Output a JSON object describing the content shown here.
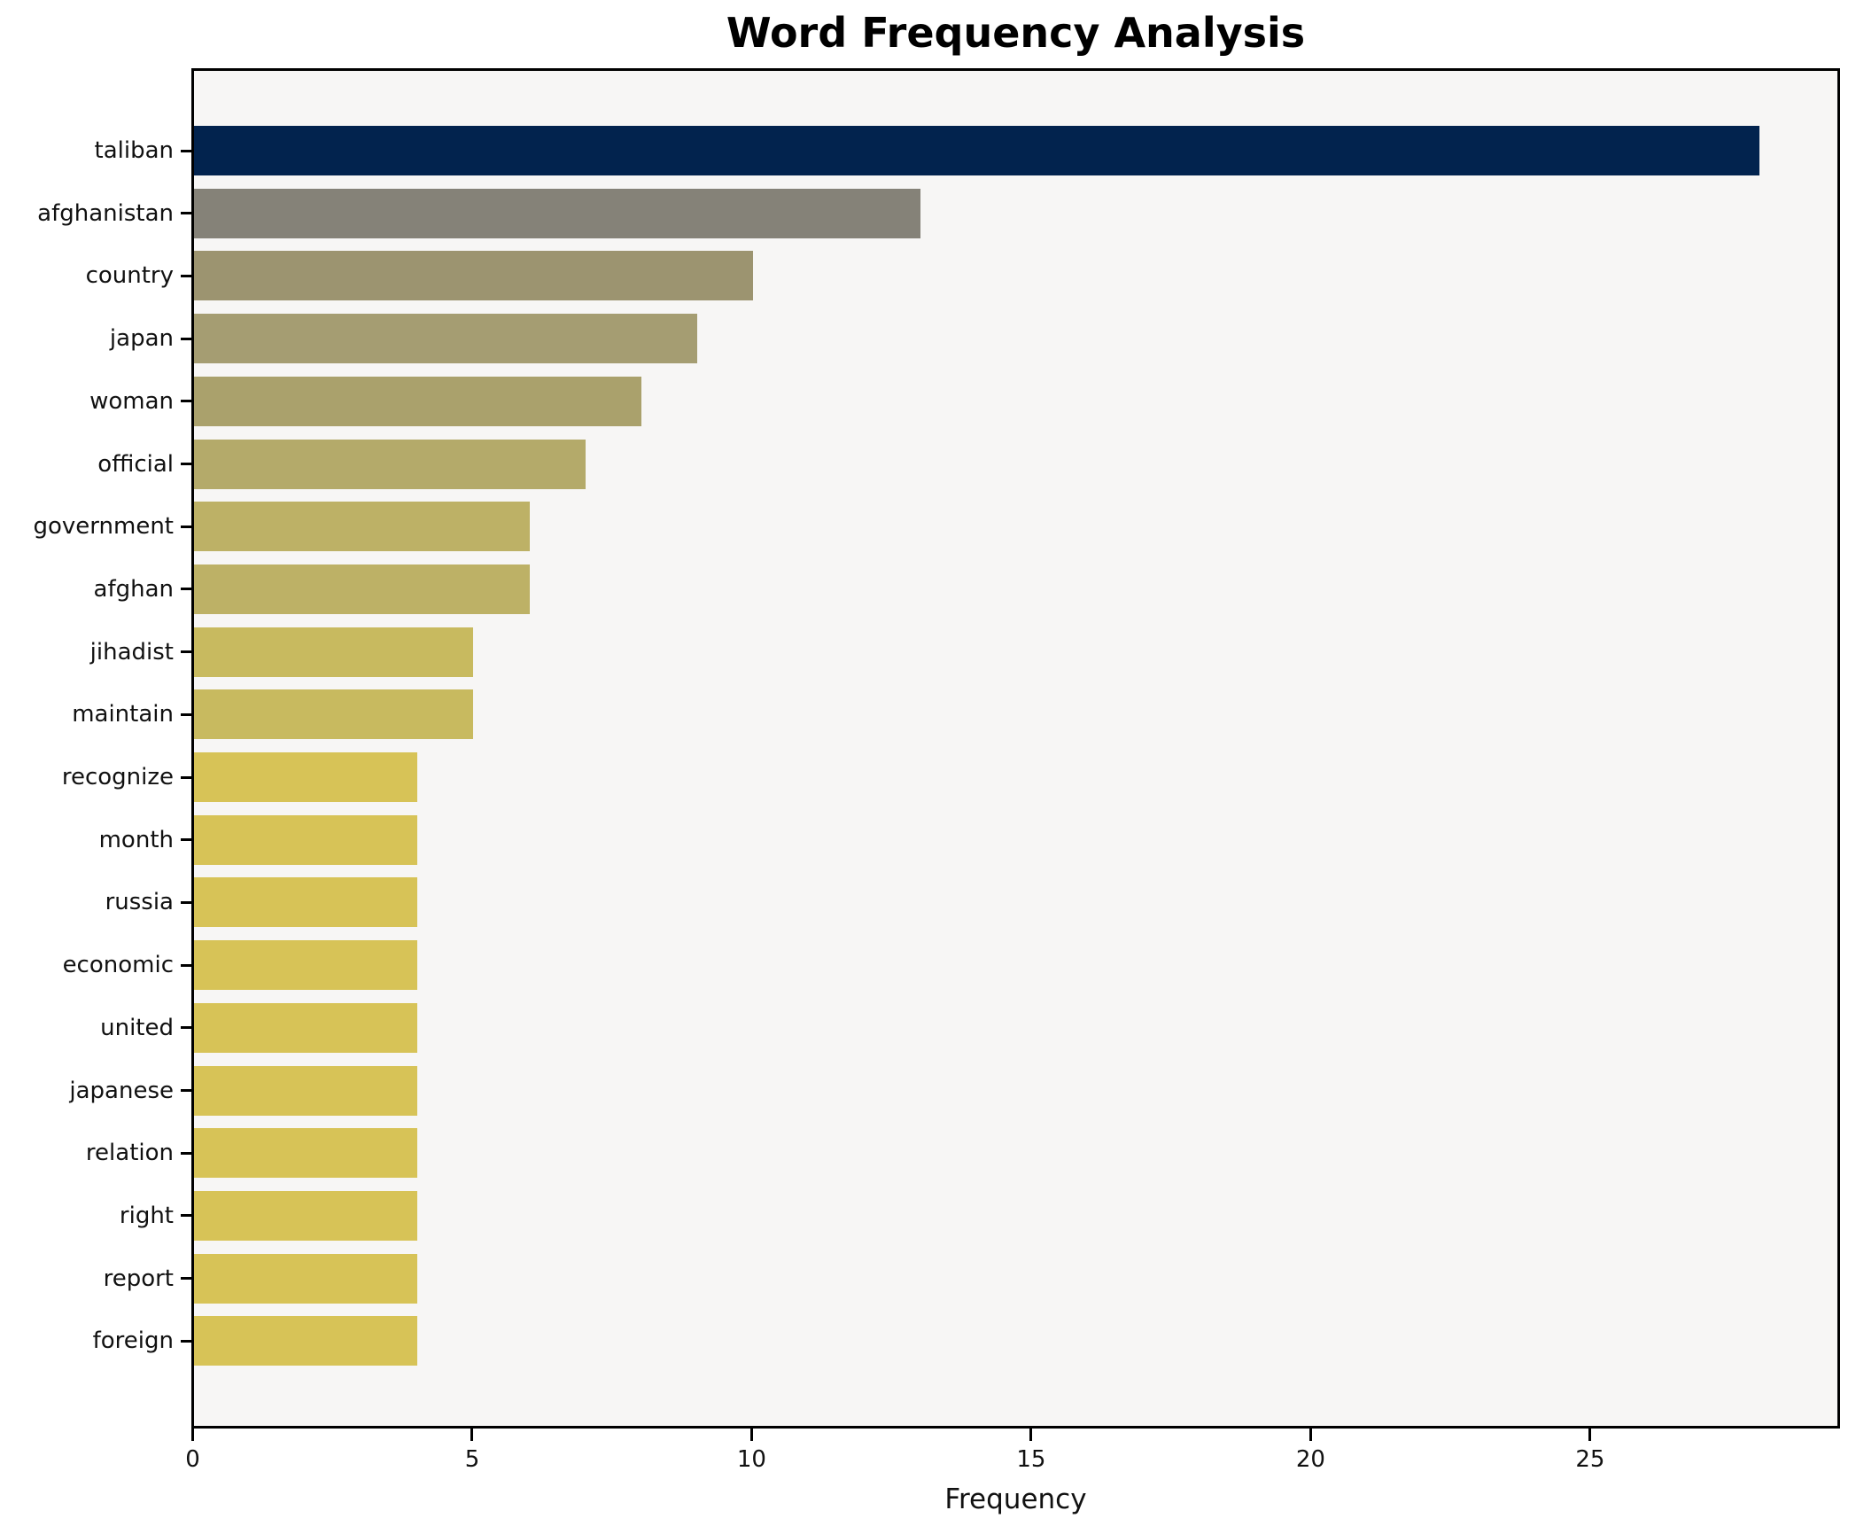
{
  "chart_data": {
    "type": "bar",
    "orientation": "horizontal",
    "title": "Word Frequency Analysis",
    "xlabel": "Frequency",
    "ylabel": "",
    "xlim": [
      0,
      29.4
    ],
    "x_ticks": [
      0,
      5,
      10,
      15,
      20,
      25
    ],
    "grid": false,
    "legend": "none",
    "plot_background": "#f7f6f5",
    "figure_background": "#ffffff",
    "spine_color": "#000000",
    "categories": [
      "taliban",
      "afghanistan",
      "country",
      "japan",
      "woman",
      "official",
      "government",
      "afghan",
      "jihadist",
      "maintain",
      "recognize",
      "month",
      "russia",
      "economic",
      "united",
      "japanese",
      "relation",
      "right",
      "report",
      "foreign"
    ],
    "values": [
      28,
      13,
      10,
      9,
      8,
      7,
      6,
      6,
      5,
      5,
      4,
      4,
      4,
      4,
      4,
      4,
      4,
      4,
      4,
      4
    ],
    "bars": [
      {
        "label": "taliban",
        "value": 28,
        "color": "#02234e"
      },
      {
        "label": "afghanistan",
        "value": 13,
        "color": "#858278"
      },
      {
        "label": "country",
        "value": 10,
        "color": "#9c9470"
      },
      {
        "label": "japan",
        "value": 9,
        "color": "#a59d72"
      },
      {
        "label": "woman",
        "value": 8,
        "color": "#aaa16c"
      },
      {
        "label": "official",
        "value": 7,
        "color": "#b4aa6a"
      },
      {
        "label": "government",
        "value": 6,
        "color": "#bdb166"
      },
      {
        "label": "afghan",
        "value": 6,
        "color": "#bdb166"
      },
      {
        "label": "jihadist",
        "value": 5,
        "color": "#c8ba5f"
      },
      {
        "label": "maintain",
        "value": 5,
        "color": "#c8ba5f"
      },
      {
        "label": "recognize",
        "value": 4,
        "color": "#d7c357"
      },
      {
        "label": "month",
        "value": 4,
        "color": "#d7c357"
      },
      {
        "label": "russia",
        "value": 4,
        "color": "#d7c357"
      },
      {
        "label": "economic",
        "value": 4,
        "color": "#d7c357"
      },
      {
        "label": "united",
        "value": 4,
        "color": "#d7c357"
      },
      {
        "label": "japanese",
        "value": 4,
        "color": "#d7c357"
      },
      {
        "label": "relation",
        "value": 4,
        "color": "#d7c357"
      },
      {
        "label": "right",
        "value": 4,
        "color": "#d7c357"
      },
      {
        "label": "report",
        "value": 4,
        "color": "#d7c357"
      },
      {
        "label": "foreign",
        "value": 4,
        "color": "#d7c357"
      }
    ]
  }
}
